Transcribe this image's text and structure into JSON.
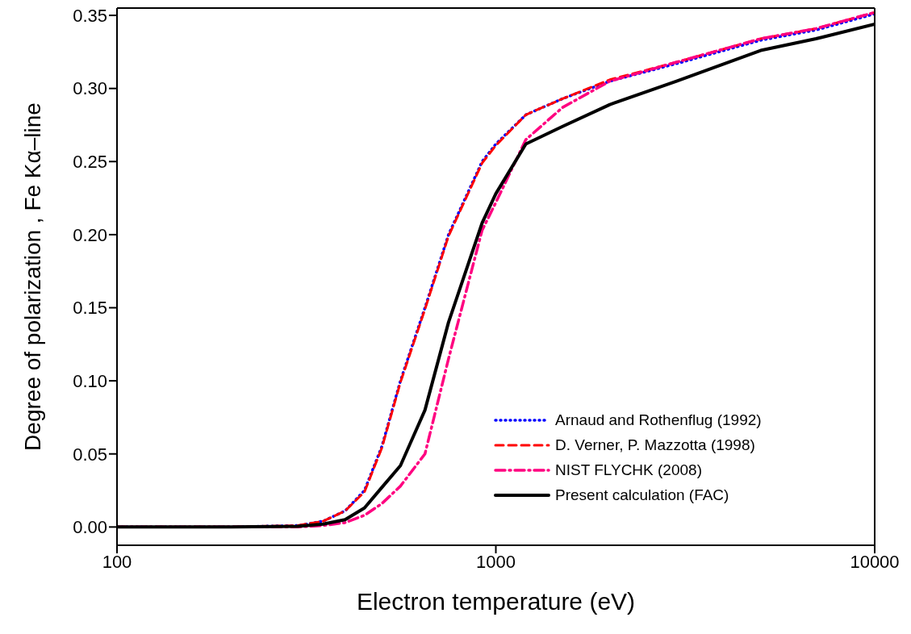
{
  "chart_data": {
    "type": "line",
    "xlabel": "Electron temperature (eV)",
    "ylabel": "Degree of polarization , Fe Kα–line",
    "x": [
      100,
      200,
      300,
      350,
      400,
      450,
      500,
      560,
      650,
      750,
      920,
      1000,
      1200,
      1500,
      2000,
      3000,
      5000,
      7000,
      10000
    ],
    "series": [
      {
        "name": "Arnaud and Rothenflug (1992)",
        "color": "#0000ff",
        "line_style": "dotted",
        "values": [
          0,
          0,
          0.001,
          0.004,
          0.011,
          0.025,
          0.055,
          0.1,
          0.15,
          0.2,
          0.25,
          0.262,
          0.282,
          0.293,
          0.305,
          0.317,
          0.333,
          0.34,
          0.351
        ]
      },
      {
        "name": "D. Verner, P. Mazzotta (1998)",
        "color": "#ff0000",
        "line_style": "dashed",
        "values": [
          0,
          0,
          0.001,
          0.004,
          0.011,
          0.024,
          0.054,
          0.099,
          0.149,
          0.199,
          0.249,
          0.261,
          0.282,
          0.293,
          0.306,
          0.318,
          0.334,
          0.341,
          0.352
        ]
      },
      {
        "name": "NIST FLYCHK (2008)",
        "color": "#ff0080",
        "line_style": "dashdot",
        "values": [
          0,
          0,
          0,
          0.001,
          0.003,
          0.008,
          0.016,
          0.028,
          0.05,
          0.115,
          0.203,
          0.222,
          0.265,
          0.287,
          0.305,
          0.318,
          0.334,
          0.341,
          0.352
        ]
      },
      {
        "name": "Present calculation (FAC)",
        "color": "#000000",
        "line_style": "solid",
        "values": [
          0,
          0,
          0.0005,
          0.002,
          0.005,
          0.013,
          0.027,
          0.042,
          0.08,
          0.14,
          0.208,
          0.228,
          0.262,
          0.274,
          0.289,
          0.305,
          0.326,
          0.334,
          0.344
        ]
      }
    ],
    "log": "x",
    "xlim": [
      100,
      10000
    ],
    "xticks": [
      100,
      1000,
      10000
    ],
    "ylim": [
      -0.0125,
      0.355
    ],
    "yticks": [
      {
        "value": 0,
        "label": "0.00"
      },
      {
        "value": 0.05,
        "label": "0.05"
      },
      {
        "value": 0.1,
        "label": "0.10"
      },
      {
        "value": 0.15,
        "label": "0.15"
      },
      {
        "value": 0.2,
        "label": "0.20"
      },
      {
        "value": 0.25,
        "label": "0.25"
      },
      {
        "value": 0.3,
        "label": "0.30"
      },
      {
        "value": 0.35,
        "label": "0.35"
      }
    ],
    "legend": "bottom right"
  }
}
